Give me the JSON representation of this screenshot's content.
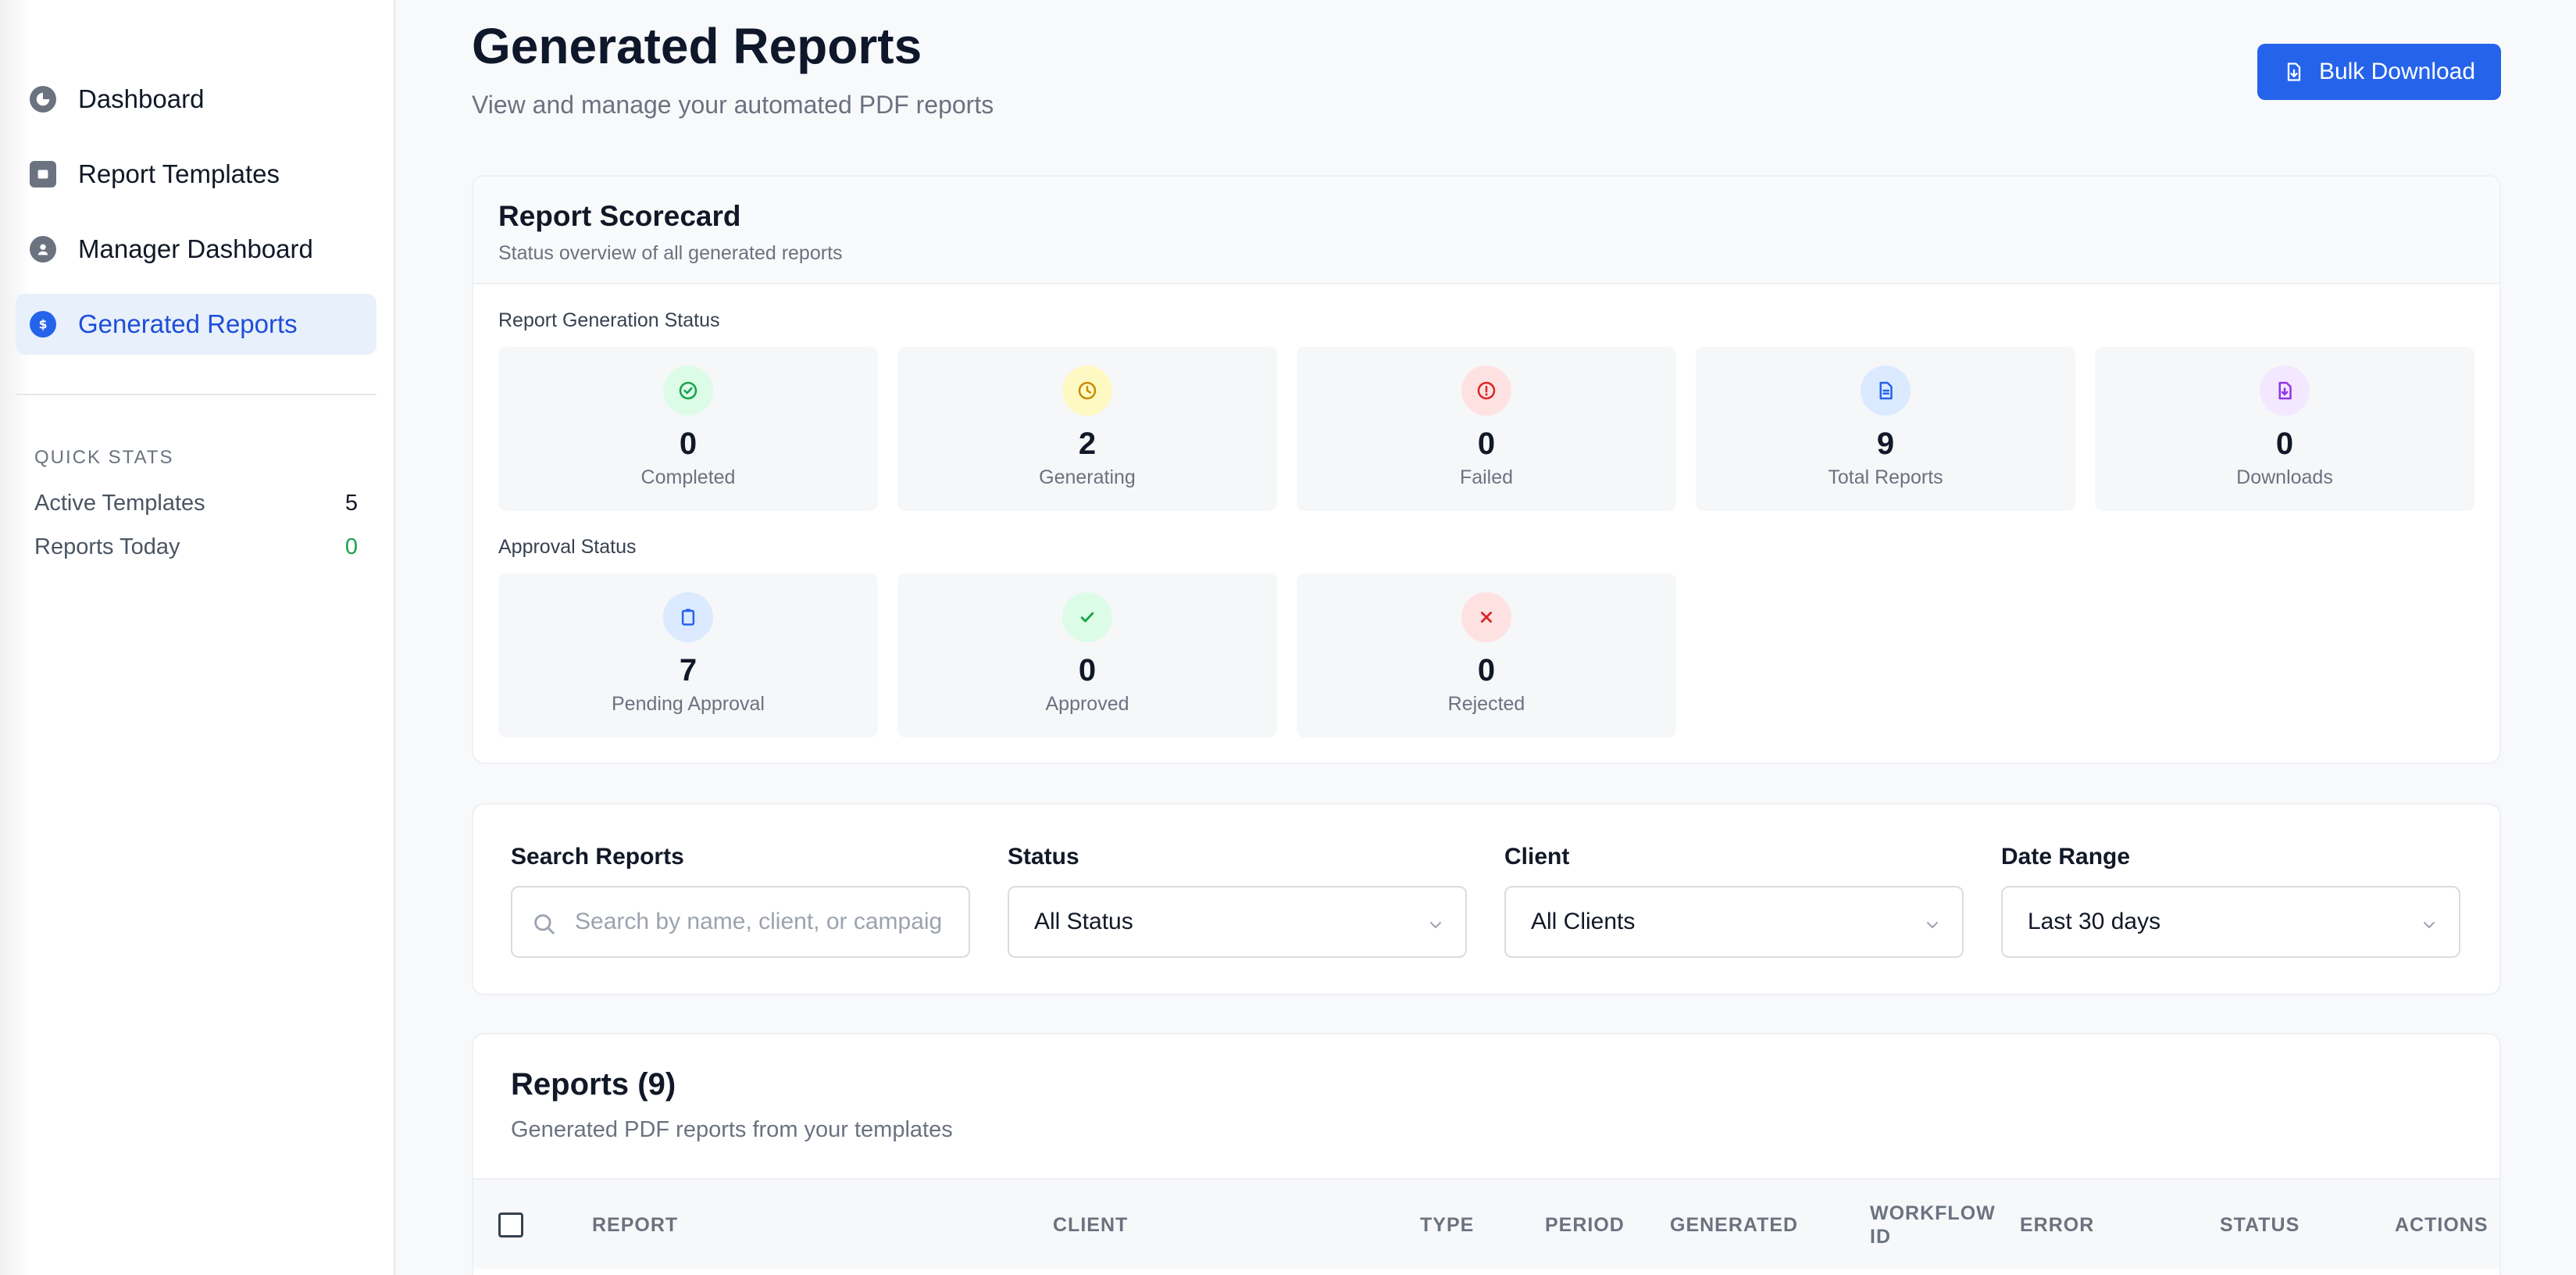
{
  "sidebar": {
    "items": [
      {
        "label": "Dashboard",
        "icon": "pie-chart-icon",
        "active": false
      },
      {
        "label": "Report Templates",
        "icon": "template-icon",
        "active": false
      },
      {
        "label": "Manager Dashboard",
        "icon": "user-icon",
        "active": false
      },
      {
        "label": "Generated Reports",
        "icon": "dollar-icon",
        "active": true
      }
    ],
    "quick_stats": {
      "title": "QUICK STATS",
      "rows": [
        {
          "label": "Active Templates",
          "value": "5"
        },
        {
          "label": "Reports Today",
          "value": "0"
        }
      ]
    }
  },
  "header": {
    "title": "Generated Reports",
    "subtitle": "View and manage your automated PDF reports",
    "bulk_download_label": "Bulk Download"
  },
  "scorecard": {
    "title": "Report Scorecard",
    "subtitle": "Status overview of all generated reports",
    "generation_label": "Report Generation Status",
    "generation": [
      {
        "value": "0",
        "label": "Completed",
        "icon": "check-circle-icon",
        "color": "#16a34a",
        "bg": "#dcfce7"
      },
      {
        "value": "2",
        "label": "Generating",
        "icon": "clock-icon",
        "color": "#ca8a04",
        "bg": "#fef9c3"
      },
      {
        "value": "0",
        "label": "Failed",
        "icon": "alert-circle-icon",
        "color": "#dc2626",
        "bg": "#fee2e2"
      },
      {
        "value": "9",
        "label": "Total Reports",
        "icon": "document-icon",
        "color": "#2563eb",
        "bg": "#dbeafe"
      },
      {
        "value": "0",
        "label": "Downloads",
        "icon": "file-download-icon",
        "color": "#9333ea",
        "bg": "#f3e8ff"
      }
    ],
    "approval_label": "Approval Status",
    "approval": [
      {
        "value": "7",
        "label": "Pending Approval",
        "icon": "clipboard-icon",
        "color": "#2563eb",
        "bg": "#dbeafe"
      },
      {
        "value": "0",
        "label": "Approved",
        "icon": "check-icon",
        "color": "#16a34a",
        "bg": "#dcfce7"
      },
      {
        "value": "0",
        "label": "Rejected",
        "icon": "x-icon",
        "color": "#dc2626",
        "bg": "#fee2e2"
      }
    ]
  },
  "filters": {
    "search": {
      "label": "Search Reports",
      "placeholder": "Search by name, client, or campaig"
    },
    "status": {
      "label": "Status",
      "value": "All Status"
    },
    "client": {
      "label": "Client",
      "value": "All Clients"
    },
    "date_range": {
      "label": "Date Range",
      "value": "Last 30 days"
    }
  },
  "reports": {
    "title": "Reports (9)",
    "subtitle": "Generated PDF reports from your templates",
    "columns": [
      "REPORT",
      "CLIENT",
      "TYPE",
      "PERIOD",
      "GENERATED",
      "WORKFLOW ID",
      "ERROR",
      "STATUS",
      "ACTIONS"
    ]
  }
}
